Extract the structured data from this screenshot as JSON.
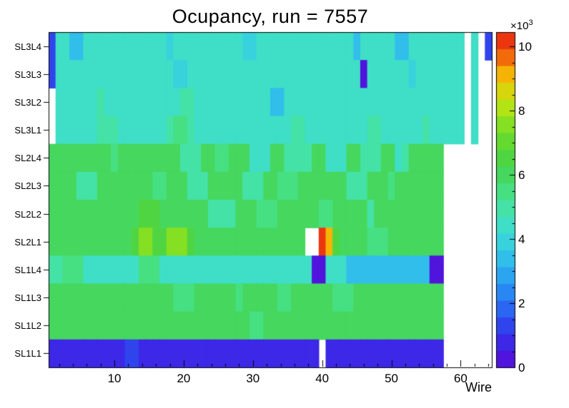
{
  "chart_data": {
    "type": "heatmap",
    "title": "Ocupancy, run = 7557",
    "xlabel": "Wire",
    "x_range": [
      0.5,
      64.5
    ],
    "x_major_ticks": [
      10,
      20,
      30,
      40,
      50,
      60
    ],
    "x_minor_tick_step": 2,
    "wires": 64,
    "z_axis": {
      "ticks": [
        0,
        2,
        4,
        6,
        8,
        10
      ],
      "minor_step": 0.5,
      "max": 10.45,
      "exponent_base": "×10",
      "exponent_power": "3",
      "unit_scale": 1000
    },
    "palette": {
      "levels": 20,
      "empty_bin_color": "#FFFFFF",
      "stops": [
        [
          0.0,
          "#5A0AD7"
        ],
        [
          0.1,
          "#3232EB"
        ],
        [
          0.2,
          "#2878F5"
        ],
        [
          0.3,
          "#2DB4F0"
        ],
        [
          0.4,
          "#3CDCD7"
        ],
        [
          0.5,
          "#46E496"
        ],
        [
          0.6,
          "#46D24B"
        ],
        [
          0.7,
          "#6EDC28"
        ],
        [
          0.8,
          "#C8E60F"
        ],
        [
          0.875,
          "#F5B405"
        ],
        [
          0.93,
          "#F2640A"
        ],
        [
          1.0,
          "#E81C12"
        ]
      ]
    },
    "rows_top_to_bottom": [
      {
        "label": "SL3L4",
        "values": [
          1.5,
          4.2,
          4.2,
          3.5,
          3.5,
          4.2,
          4.2,
          4.2,
          4.2,
          4.2,
          4.2,
          4.2,
          4.2,
          4.2,
          4.2,
          4.2,
          4.2,
          3.9,
          4.2,
          4.2,
          4.2,
          4.2,
          4.2,
          4.2,
          4.2,
          4.2,
          4.2,
          4.2,
          3.9,
          3.9,
          4.2,
          4.2,
          4.2,
          4.2,
          4.2,
          4.2,
          4.2,
          4.2,
          4.2,
          4.2,
          4.2,
          4.2,
          4.2,
          4.2,
          3.5,
          4.2,
          4.2,
          4.2,
          4.2,
          4.2,
          3.5,
          3.5,
          4.2,
          4.2,
          4.2,
          4.2,
          4.2,
          4.2,
          4.2,
          4.2,
          0,
          4.2,
          0,
          1.5
        ]
      },
      {
        "label": "SL3L3",
        "values": [
          1.5,
          4.2,
          4.2,
          4.2,
          4.2,
          4.2,
          4.2,
          4.2,
          4.2,
          4.2,
          4.2,
          4.2,
          4.2,
          4.2,
          4.2,
          4.2,
          4.2,
          4.2,
          3.9,
          3.9,
          4.2,
          4.2,
          4.2,
          4.2,
          4.2,
          4.2,
          4.2,
          4.2,
          4.2,
          4.2,
          4.2,
          4.2,
          4.2,
          4.2,
          4.2,
          4.2,
          4.2,
          4.2,
          4.2,
          4.2,
          4.2,
          4.2,
          4.2,
          4.2,
          4.2,
          0.4,
          4.2,
          4.2,
          4.2,
          4.2,
          4.2,
          4.2,
          3.9,
          4.2,
          4.2,
          4.2,
          4.2,
          4.2,
          4.2,
          4.2,
          0,
          4.2,
          0,
          0
        ]
      },
      {
        "label": "SL3L2",
        "values": [
          0,
          4.2,
          4.2,
          4.2,
          4.2,
          4.2,
          4.2,
          4.9,
          4.2,
          4.2,
          4.2,
          4.2,
          4.2,
          4.2,
          4.2,
          4.2,
          4.2,
          4.2,
          4.2,
          4.9,
          4.9,
          4.2,
          4.2,
          4.2,
          4.2,
          4.2,
          4.2,
          4.2,
          4.2,
          4.2,
          4.2,
          4.2,
          3.5,
          3.5,
          4.2,
          4.2,
          4.2,
          4.2,
          4.2,
          4.2,
          4.2,
          4.2,
          4.2,
          4.2,
          4.2,
          4.2,
          4.2,
          4.2,
          4.2,
          4.2,
          4.2,
          4.2,
          4.2,
          4.2,
          4.2,
          4.2,
          4.2,
          4.2,
          4.2,
          4.2,
          0,
          4.2,
          0,
          0
        ]
      },
      {
        "label": "SL3L1",
        "values": [
          0,
          4.2,
          4.2,
          4.2,
          4.2,
          4.2,
          4.2,
          4.9,
          4.9,
          4.9,
          4.2,
          4.2,
          4.2,
          4.2,
          4.2,
          4.2,
          4.2,
          4.9,
          5.4,
          5.4,
          4.9,
          4.2,
          4.2,
          4.2,
          4.2,
          4.2,
          4.2,
          4.2,
          4.2,
          4.2,
          4.2,
          4.2,
          4.2,
          4.2,
          4.2,
          4.9,
          4.9,
          4.2,
          4.2,
          4.2,
          4.2,
          4.2,
          4.2,
          4.2,
          4.2,
          4.2,
          4.9,
          4.9,
          4.2,
          4.2,
          4.2,
          4.2,
          4.2,
          4.2,
          4.9,
          4.2,
          4.2,
          4.2,
          4.2,
          4.2,
          0,
          4.2,
          0,
          0
        ]
      },
      {
        "label": "SL2L4",
        "values": [
          5.8,
          5.8,
          5.8,
          5.8,
          5.8,
          5.8,
          5.8,
          5.8,
          5.8,
          5.4,
          5.8,
          5.8,
          5.8,
          5.8,
          5.8,
          5.8,
          5.8,
          5.8,
          5.8,
          4.9,
          4.9,
          4.9,
          5.8,
          5.8,
          5.4,
          5.4,
          5.8,
          5.8,
          5.8,
          4.4,
          4.4,
          4.4,
          5.8,
          5.8,
          4.9,
          4.9,
          4.9,
          4.9,
          5.8,
          5.8,
          4.4,
          4.4,
          4.4,
          5.8,
          5.8,
          4.9,
          4.9,
          4.9,
          5.8,
          5.8,
          4.4,
          4.9,
          5.8,
          5.8,
          5.8,
          5.8,
          5.8,
          0,
          0,
          0,
          0,
          0,
          0,
          0
        ]
      },
      {
        "label": "SL2L3",
        "values": [
          5.8,
          5.8,
          5.8,
          5.8,
          4.9,
          4.9,
          4.9,
          5.8,
          5.8,
          5.8,
          5.8,
          5.8,
          5.8,
          5.8,
          5.8,
          5.4,
          5.4,
          5.8,
          5.8,
          5.8,
          4.9,
          4.9,
          4.9,
          5.8,
          5.8,
          5.8,
          5.8,
          5.8,
          4.9,
          4.9,
          4.9,
          5.8,
          5.8,
          5.4,
          5.4,
          5.4,
          5.8,
          5.8,
          5.8,
          5.8,
          5.8,
          5.8,
          5.8,
          4.9,
          4.9,
          4.9,
          5.8,
          5.8,
          5.8,
          5.4,
          5.8,
          5.8,
          5.8,
          5.8,
          5.8,
          5.8,
          5.8,
          0,
          0,
          0,
          0,
          0,
          0,
          0
        ]
      },
      {
        "label": "SL2L2",
        "values": [
          5.8,
          5.8,
          5.8,
          5.8,
          5.8,
          5.8,
          5.8,
          5.8,
          5.8,
          5.8,
          5.8,
          5.8,
          5.8,
          6.6,
          6.6,
          6.6,
          5.8,
          5.8,
          5.8,
          5.8,
          5.8,
          5.8,
          5.8,
          4.9,
          4.9,
          4.9,
          4.9,
          5.8,
          5.8,
          5.8,
          5.4,
          5.4,
          5.4,
          5.8,
          5.8,
          5.8,
          5.8,
          5.8,
          5.8,
          5.4,
          5.4,
          5.8,
          5.8,
          5.8,
          5.8,
          5.8,
          4.9,
          5.8,
          5.8,
          5.8,
          5.8,
          5.8,
          5.8,
          5.8,
          5.8,
          5.8,
          5.8,
          0,
          0,
          0,
          0,
          0,
          0,
          0
        ]
      },
      {
        "label": "SL2L1",
        "values": [
          5.8,
          5.8,
          5.8,
          5.8,
          5.8,
          5.8,
          5.8,
          5.8,
          5.8,
          5.8,
          5.8,
          5.8,
          6.6,
          7.6,
          7.6,
          6.6,
          6.6,
          7.6,
          7.6,
          7.6,
          6.6,
          5.8,
          5.8,
          5.8,
          5.8,
          5.8,
          5.8,
          5.8,
          5.8,
          5.8,
          5.8,
          5.8,
          5.8,
          5.8,
          5.8,
          5.8,
          5.8,
          0,
          0,
          10.2,
          9.0,
          6.6,
          5.8,
          5.8,
          5.8,
          5.8,
          5.4,
          5.4,
          5.4,
          5.8,
          5.8,
          5.8,
          5.8,
          5.8,
          5.8,
          5.8,
          5.8,
          0,
          0,
          0,
          0,
          0,
          0,
          0
        ]
      },
      {
        "label": "SL1L4",
        "values": [
          4.9,
          4.9,
          5.4,
          5.4,
          5.4,
          4.2,
          4.2,
          4.2,
          4.2,
          4.2,
          4.2,
          4.2,
          4.2,
          5.4,
          5.4,
          5.4,
          4.2,
          4.2,
          4.2,
          4.2,
          4.2,
          4.2,
          4.2,
          4.2,
          4.2,
          4.2,
          4.2,
          4.2,
          4.2,
          4.2,
          4.2,
          4.2,
          4.2,
          4.2,
          4.2,
          4.2,
          4.2,
          4.2,
          0.4,
          0.4,
          4.2,
          4.2,
          4.2,
          3.5,
          3.5,
          3.5,
          3.5,
          3.5,
          3.5,
          3.5,
          3.5,
          3.5,
          3.5,
          3.5,
          3.5,
          0.4,
          0.4,
          0,
          0,
          0,
          0,
          0,
          0,
          0
        ]
      },
      {
        "label": "SL1L3",
        "values": [
          5.8,
          5.8,
          5.8,
          5.8,
          5.8,
          5.8,
          5.8,
          5.8,
          5.8,
          5.8,
          5.8,
          5.8,
          5.8,
          5.8,
          5.8,
          5.8,
          5.8,
          5.8,
          5.4,
          5.4,
          5.4,
          5.8,
          5.8,
          5.8,
          5.8,
          5.8,
          5.8,
          5.4,
          5.8,
          5.8,
          5.8,
          5.8,
          5.8,
          5.4,
          5.4,
          5.8,
          5.8,
          5.8,
          5.8,
          5.8,
          5.8,
          5.4,
          5.4,
          5.4,
          5.8,
          5.8,
          5.8,
          5.8,
          5.8,
          5.8,
          5.8,
          5.8,
          5.8,
          5.8,
          5.8,
          5.8,
          5.8,
          0,
          0,
          0,
          0,
          0,
          0,
          0
        ]
      },
      {
        "label": "SL1L2",
        "values": [
          5.8,
          5.8,
          5.8,
          5.8,
          5.8,
          5.8,
          5.8,
          5.8,
          5.8,
          5.8,
          5.8,
          5.8,
          5.8,
          5.8,
          5.8,
          5.8,
          5.8,
          5.8,
          5.8,
          5.8,
          5.8,
          5.8,
          5.8,
          5.8,
          5.8,
          5.8,
          5.8,
          5.8,
          5.8,
          5.4,
          5.4,
          5.8,
          5.8,
          5.8,
          5.8,
          5.8,
          5.8,
          5.8,
          5.8,
          5.8,
          5.8,
          5.8,
          5.8,
          5.8,
          5.8,
          5.8,
          5.8,
          5.8,
          5.8,
          5.8,
          5.8,
          5.8,
          5.8,
          5.8,
          5.8,
          5.8,
          5.8,
          0,
          0,
          0,
          0,
          0,
          0,
          0
        ]
      },
      {
        "label": "SL1L1",
        "values": [
          0.8,
          0.8,
          0.8,
          0.8,
          0.8,
          0.8,
          0.8,
          0.8,
          0.8,
          0.8,
          0.8,
          1.5,
          1.5,
          0.8,
          0.8,
          0.8,
          0.8,
          0.8,
          0.8,
          0.8,
          0.8,
          0.8,
          0.8,
          0.8,
          0.8,
          0.8,
          0.8,
          0.8,
          0.8,
          0.8,
          0.8,
          0.8,
          0.8,
          0.8,
          0.8,
          0.8,
          0.8,
          0.8,
          0.8,
          0,
          0.8,
          0.8,
          0.8,
          0.8,
          0.8,
          0.8,
          0.8,
          0.8,
          0.8,
          0.8,
          0.8,
          0.8,
          0.8,
          0.8,
          0.8,
          0.8,
          0.8,
          0,
          0,
          0,
          0,
          0,
          0,
          0
        ]
      }
    ]
  }
}
